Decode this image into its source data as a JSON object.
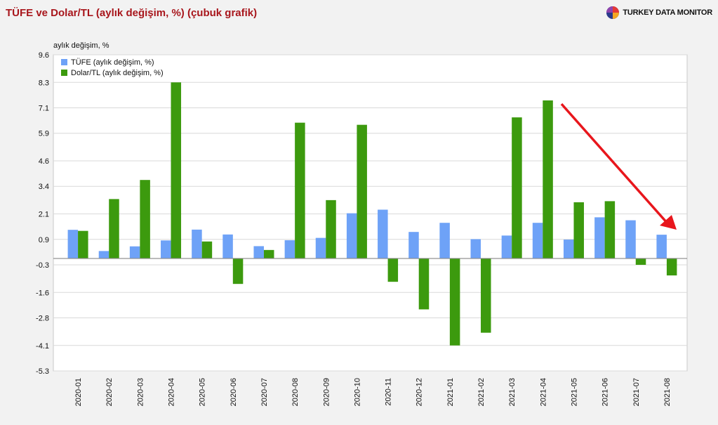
{
  "header": {
    "title": "TÜFE ve Dolar/TL (aylık değişim, %) (çubuk grafik)",
    "brand": "TURKEY DATA MONITOR",
    "brand_logo": "turkey-data-monitor-logo-icon"
  },
  "colors": {
    "title": "#a8161c",
    "tufe": "#6ea2f7",
    "dolar": "#3c9a0e",
    "arrow": "#e8161c",
    "grid": "#d9d9d9",
    "zero_line": "#888888"
  },
  "chart_data": {
    "type": "bar",
    "ylabel": "aylık değişim, %",
    "ylim": [
      -5.3,
      9.6
    ],
    "yticks": [
      "9.6",
      "8.3",
      "7.1",
      "5.9",
      "4.6",
      "3.4",
      "2.1",
      "0.9",
      "-0.3",
      "-1.6",
      "-2.8",
      "-4.1",
      "-5.3"
    ],
    "grid": true,
    "legend_position": "top-left",
    "categories": [
      "2020-01",
      "2020-02",
      "2020-03",
      "2020-04",
      "2020-05",
      "2020-06",
      "2020-07",
      "2020-08",
      "2020-09",
      "2020-10",
      "2020-11",
      "2020-12",
      "2021-01",
      "2021-02",
      "2021-03",
      "2021-04",
      "2021-05",
      "2021-06",
      "2021-07",
      "2021-08"
    ],
    "series": [
      {
        "name": "TÜFE (aylık değişim, %)",
        "values": [
          1.35,
          0.35,
          0.57,
          0.85,
          1.36,
          1.13,
          0.58,
          0.86,
          0.97,
          2.13,
          2.3,
          1.25,
          1.68,
          0.91,
          1.08,
          1.68,
          0.89,
          1.94,
          1.8,
          1.12
        ]
      },
      {
        "name": "Dolar/TL (aylık değişim, %)",
        "values": [
          1.3,
          2.8,
          3.7,
          8.3,
          0.8,
          -1.2,
          0.4,
          6.4,
          2.75,
          6.3,
          -1.1,
          -2.4,
          -4.1,
          -3.5,
          6.65,
          7.45,
          2.65,
          2.7,
          -0.3,
          -0.8
        ]
      }
    ],
    "annotation": "red-downward-arrow"
  }
}
